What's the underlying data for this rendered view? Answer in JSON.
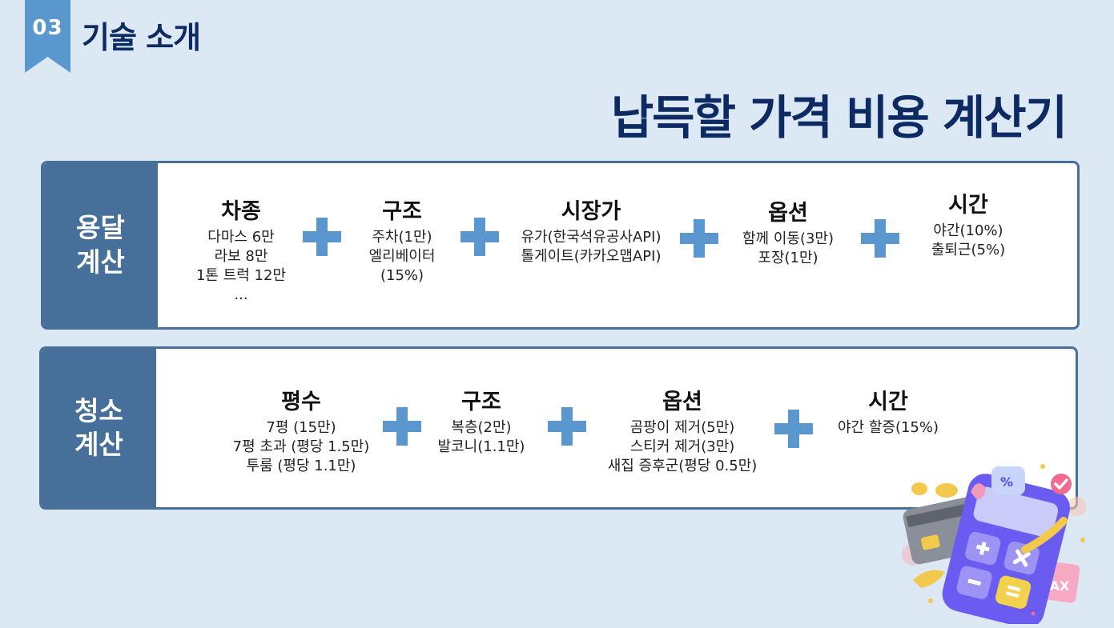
{
  "header": {
    "badge_number": "03",
    "section_title": "기술 소개"
  },
  "main_title": "납득할 가격 비용 계산기",
  "delivery": {
    "label_line1": "용달",
    "label_line2": "계산",
    "items": [
      {
        "title": "차종",
        "lines": [
          "다마스 6만",
          "라보 8만",
          "1톤 트럭 12만",
          "..."
        ]
      },
      {
        "title": "구조",
        "lines": [
          "주차(1만)",
          "엘리베이터",
          "(15%)"
        ]
      },
      {
        "title": "시장가",
        "lines": [
          "유가(한국석유공사API)",
          "톨게이트(카카오맵API)"
        ]
      },
      {
        "title": "옵션",
        "lines": [
          "함께 이동(3만)",
          "포장(1만)"
        ]
      },
      {
        "title": "시간",
        "lines": [
          "야간(10%)",
          "출퇴근(5%)"
        ]
      }
    ]
  },
  "cleaning": {
    "label_line1": "청소",
    "label_line2": "계산",
    "items": [
      {
        "title": "평수",
        "lines": [
          "7평 (15만)",
          "7평 초과 (평당 1.5만)",
          "투룸 (평당 1.1만)"
        ]
      },
      {
        "title": "구조",
        "lines": [
          "복층(2만)",
          "발코니(1.1만)"
        ]
      },
      {
        "title": "옵션",
        "lines": [
          "곰팡이 제거(5만)",
          "스티커 제거(3만)",
          "새집 증후군(평당 0.5만)"
        ]
      },
      {
        "title": "시간",
        "lines": [
          "야간 할증(15%)"
        ]
      }
    ]
  },
  "illustration": {
    "percent_symbol": "%",
    "tax_label": "TAX",
    "icon": "calculator-icon"
  },
  "colors": {
    "background": "#dce8f4",
    "accent": "#5b97cf",
    "panel_label": "#466f99",
    "title": "#0d2a63"
  }
}
